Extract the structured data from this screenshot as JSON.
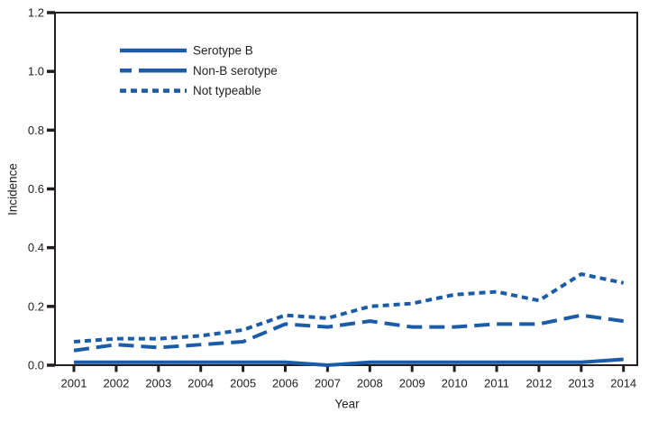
{
  "figure": {
    "background": "#ffffff",
    "line_color": "#1A5CA8",
    "axis_color": "#231f20"
  },
  "chart_data": {
    "type": "line",
    "title": "",
    "xlabel": "Year",
    "ylabel": "Incidence",
    "x": [
      2001,
      2002,
      2003,
      2004,
      2005,
      2006,
      2007,
      2008,
      2009,
      2010,
      2011,
      2012,
      2013,
      2014
    ],
    "x_tick_labels": [
      "2001",
      "2002",
      "2003",
      "2004",
      "2005",
      "2006",
      "2007",
      "2008",
      "2009",
      "2010",
      "2011",
      "2012",
      "2013",
      "2014"
    ],
    "ylim": [
      0,
      1.2
    ],
    "yticks": [
      0,
      0.2,
      0.4,
      0.6,
      0.8,
      1.0,
      1.2
    ],
    "ytick_labels": [
      "0.0",
      "0.2",
      "0.4",
      "0.6",
      "0.8",
      "1.0",
      "1.2"
    ],
    "grid": false,
    "legend_position": "upper-left-inside",
    "series": [
      {
        "name": "Serotype B",
        "style": "solid",
        "values": [
          0.01,
          0.01,
          0.01,
          0.01,
          0.01,
          0.01,
          0.0,
          0.01,
          0.01,
          0.01,
          0.01,
          0.01,
          0.01,
          0.02
        ]
      },
      {
        "name": "Non-B serotype",
        "style": "long-dash",
        "values": [
          0.05,
          0.07,
          0.06,
          0.07,
          0.08,
          0.14,
          0.13,
          0.15,
          0.13,
          0.13,
          0.14,
          0.14,
          0.17,
          0.15
        ]
      },
      {
        "name": "Not typeable",
        "style": "short-dash",
        "values": [
          0.08,
          0.09,
          0.09,
          0.1,
          0.12,
          0.17,
          0.16,
          0.2,
          0.21,
          0.24,
          0.25,
          0.22,
          0.31,
          0.28
        ]
      }
    ]
  }
}
